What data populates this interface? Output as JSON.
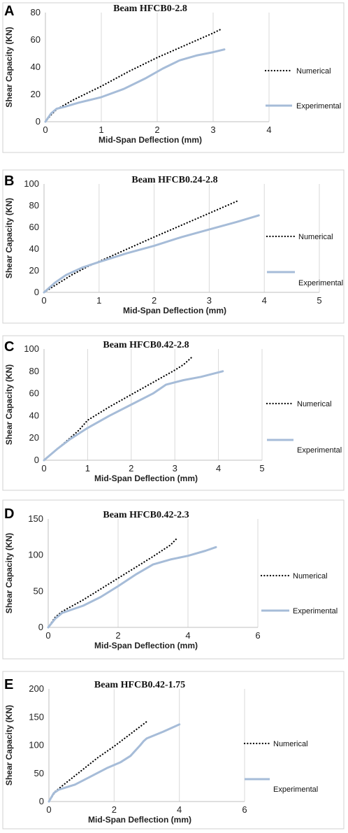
{
  "chart_data": [
    {
      "type": "line",
      "panel_letter": "A",
      "title": "Beam HFCB0-2.8",
      "xlabel": "Mid-Span Deflection (mm)",
      "ylabel": "Shear Capacity (KN)",
      "xlim": [
        0,
        4
      ],
      "ylim": [
        0,
        80
      ],
      "xticks": [
        0,
        1,
        2,
        3,
        4
      ],
      "yticks": [
        0,
        20,
        40,
        60,
        80
      ],
      "grid": "vertical",
      "legend_position": "right",
      "series": [
        {
          "name": "Numerical",
          "style": "dotted",
          "color": "#000000",
          "x": [
            0,
            0.1,
            0.2,
            0.5,
            1.0,
            1.5,
            2.0,
            2.5,
            3.0,
            3.15
          ],
          "y": [
            0,
            5,
            9,
            16,
            26,
            37,
            47,
            56,
            65,
            68
          ]
        },
        {
          "name": "Experimental",
          "style": "solid",
          "color": "#a6bcd8",
          "x": [
            0,
            0.1,
            0.2,
            0.35,
            0.6,
            1.0,
            1.4,
            1.8,
            2.1,
            2.4,
            2.7,
            3.0,
            3.2
          ],
          "y": [
            0,
            6,
            9.5,
            11,
            14,
            18,
            24,
            32,
            39,
            45,
            48.5,
            51,
            53
          ]
        }
      ]
    },
    {
      "type": "line",
      "panel_letter": "B",
      "title": "Beam HFCB0.24-2.8",
      "xlabel": "Mid-Span Deflection (mm)",
      "ylabel": "Shear Capacity (KN)",
      "xlim": [
        0,
        5
      ],
      "ylim": [
        0,
        100
      ],
      "xticks": [
        0,
        1,
        2,
        3,
        4,
        5
      ],
      "yticks": [
        0,
        20,
        40,
        60,
        80,
        100
      ],
      "grid": "vertical",
      "legend_position": "right",
      "series": [
        {
          "name": "Numerical",
          "style": "dotted",
          "color": "#000000",
          "x": [
            0,
            0.25,
            0.5,
            0.8,
            1.2,
            1.6,
            2.0,
            2.5,
            3.0,
            3.5
          ],
          "y": [
            0,
            8,
            16,
            24,
            33,
            42,
            51,
            62,
            73,
            84
          ]
        },
        {
          "name": "Experimental",
          "style": "solid",
          "color": "#a6bcd8",
          "x": [
            0,
            0.2,
            0.4,
            0.7,
            1.0,
            1.5,
            2.0,
            2.5,
            3.0,
            3.5,
            3.9
          ],
          "y": [
            0,
            9,
            16,
            23,
            28,
            36,
            43,
            51,
            58,
            65,
            71
          ]
        }
      ]
    },
    {
      "type": "line",
      "panel_letter": "C",
      "title": "Beam HFCB0.42-2.8",
      "xlabel": "Mid-Span Deflection (mm)",
      "ylabel": "Shear Capacity (KN)",
      "xlim": [
        0,
        5
      ],
      "ylim": [
        0,
        100
      ],
      "xticks": [
        0,
        1,
        2,
        3,
        4,
        5
      ],
      "yticks": [
        0,
        20,
        40,
        60,
        80,
        100
      ],
      "grid": "vertical",
      "legend_position": "right",
      "series": [
        {
          "name": "Numerical",
          "style": "dotted",
          "color": "#000000",
          "x": [
            0,
            0.3,
            0.6,
            0.8,
            1.0,
            1.5,
            2.0,
            2.5,
            3.0,
            3.2,
            3.4
          ],
          "y": [
            0,
            10,
            20,
            27,
            36,
            48,
            59,
            70,
            81,
            86,
            93
          ]
        },
        {
          "name": "Experimental",
          "style": "solid",
          "color": "#a6bcd8",
          "x": [
            0,
            0.3,
            0.6,
            1.0,
            1.5,
            2.0,
            2.5,
            2.8,
            3.2,
            3.6,
            4.1
          ],
          "y": [
            0,
            10,
            19,
            29,
            40,
            50,
            60,
            68,
            72,
            75,
            80
          ]
        }
      ]
    },
    {
      "type": "line",
      "panel_letter": "D",
      "title": "Beam HFCB0.42-2.3",
      "xlabel": "Mid-Span Deflection (mm)",
      "ylabel": "Shear Capacity (KN)",
      "xlim": [
        0,
        6
      ],
      "ylim": [
        0,
        150
      ],
      "xticks": [
        0,
        2,
        4,
        6
      ],
      "yticks": [
        0,
        50,
        100,
        150
      ],
      "grid": "vertical",
      "legend_position": "right",
      "series": [
        {
          "name": "Numerical",
          "style": "dotted",
          "color": "#000000",
          "x": [
            0,
            0.2,
            0.4,
            1.0,
            1.5,
            2.0,
            2.5,
            3.0,
            3.5,
            3.7
          ],
          "y": [
            0,
            14,
            22,
            38,
            53,
            68,
            83,
            98,
            114,
            124
          ]
        },
        {
          "name": "Experimental",
          "style": "solid",
          "color": "#a6bcd8",
          "x": [
            0,
            0.2,
            0.4,
            1.0,
            1.5,
            2.0,
            2.5,
            3.0,
            3.5,
            4.0,
            4.5,
            4.8
          ],
          "y": [
            0,
            12,
            20,
            30,
            42,
            57,
            73,
            87,
            94,
            99,
            106,
            111
          ]
        }
      ]
    },
    {
      "type": "line",
      "panel_letter": "E",
      "title": "Beam HFCB0.42-1.75",
      "xlabel": "Mid-Span Deflection (mm)",
      "ylabel": "Shear Capacity (KN)",
      "xlim": [
        0,
        6
      ],
      "ylim": [
        0,
        200
      ],
      "xticks": [
        0,
        2,
        4,
        6
      ],
      "yticks": [
        0,
        50,
        100,
        150,
        200
      ],
      "grid": "vertical",
      "legend_position": "right",
      "series": [
        {
          "name": "Numerical",
          "style": "dotted",
          "color": "#000000",
          "x": [
            0,
            0.2,
            0.5,
            1.0,
            1.5,
            2.0,
            2.5,
            3.0
          ],
          "y": [
            0,
            18,
            32,
            55,
            78,
            98,
            120,
            142
          ]
        },
        {
          "name": "Experimental",
          "style": "solid",
          "color": "#a6bcd8",
          "x": [
            0,
            0.15,
            0.3,
            0.8,
            1.2,
            1.8,
            2.2,
            2.5,
            2.8,
            2.9,
            3.0,
            3.5,
            4.0
          ],
          "y": [
            0,
            15,
            21,
            30,
            42,
            60,
            70,
            81,
            100,
            107,
            112,
            124,
            137
          ]
        }
      ]
    }
  ]
}
